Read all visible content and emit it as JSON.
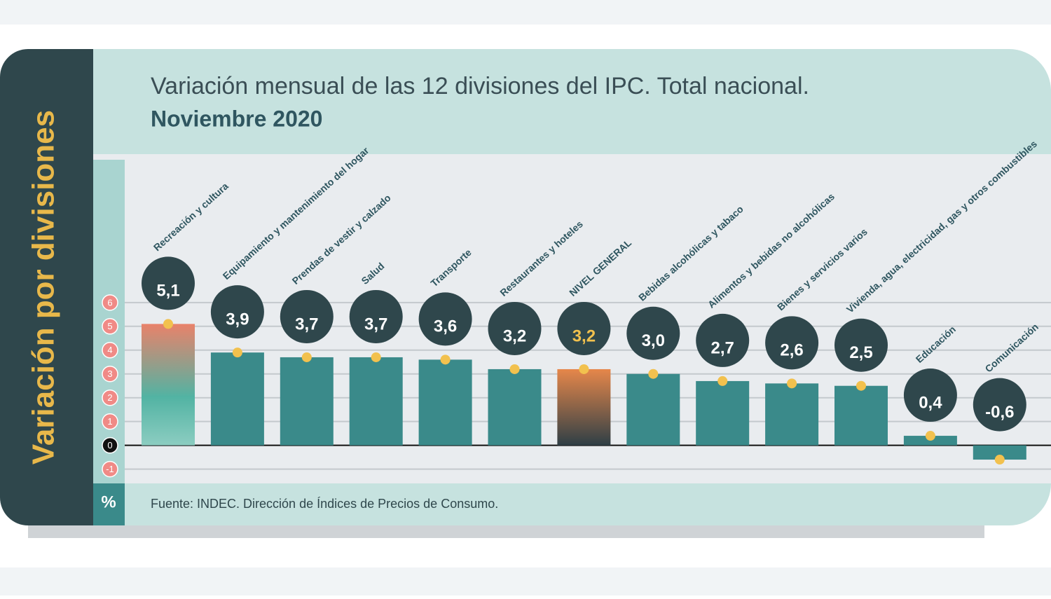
{
  "chart_data": {
    "type": "bar",
    "title": "Variación mensual de las 12 divisiones del IPC. Total nacional.",
    "subtitle": "Noviembre 2020",
    "side_label": "Variación por divisiones",
    "unit": "%",
    "source": "Fuente: INDEC. Dirección de Índices de Precios de Consumo.",
    "categories": [
      "Recreación y cultura",
      "Equipamiento y mantenimiento del hogar",
      "Prendas de vestir y calzado",
      "Salud",
      "Transporte",
      "Restaurantes y hoteles",
      "NIVEL GENERAL",
      "Bebidas alcohólicas y tabaco",
      "Alimentos y bebidas no alcohólicas",
      "Bienes y servicios varios",
      "Vivienda, agua, electricidad, gas y otros combustibles",
      "Educación",
      "Comunicación"
    ],
    "values": [
      5.1,
      3.9,
      3.7,
      3.7,
      3.6,
      3.2,
      3.2,
      3.0,
      2.7,
      2.6,
      2.5,
      0.4,
      -0.6
    ],
    "value_labels": [
      "5,1",
      "3,9",
      "3,7",
      "3,7",
      "3,6",
      "3,2",
      "3,2",
      "3,0",
      "2,7",
      "2,6",
      "2,5",
      "0,4",
      "-0,6"
    ],
    "color": "#3a8a8a",
    "ylim": [
      -1.6,
      12
    ],
    "yticks": [
      -1,
      0,
      1,
      2,
      3,
      4,
      5,
      6
    ],
    "grid": true
  }
}
